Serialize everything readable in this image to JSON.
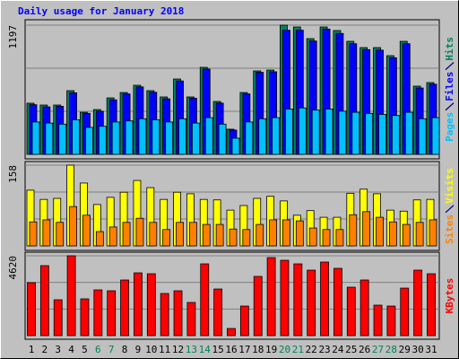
{
  "chart_data": {
    "type": "bar",
    "title": "Daily usage for January 2018",
    "categories": [
      "1",
      "2",
      "3",
      "4",
      "5",
      "6",
      "7",
      "8",
      "9",
      "10",
      "11",
      "12",
      "13",
      "14",
      "15",
      "16",
      "17",
      "18",
      "19",
      "20",
      "21",
      "22",
      "23",
      "24",
      "25",
      "26",
      "27",
      "28",
      "29",
      "30",
      "31"
    ],
    "category_colors": [
      "#000000",
      "#000000",
      "#000000",
      "#000000",
      "#000000",
      "#00805C",
      "#00805C",
      "#000000",
      "#000000",
      "#000000",
      "#000000",
      "#000000",
      "#00805C",
      "#00805C",
      "#000000",
      "#000000",
      "#000000",
      "#000000",
      "#000000",
      "#00805C",
      "#00805C",
      "#000000",
      "#000000",
      "#000000",
      "#000000",
      "#000000",
      "#00805C",
      "#00805C",
      "#000000",
      "#000000",
      "#000000"
    ],
    "panels": [
      {
        "ylim": [
          0,
          1197
        ],
        "yticks": [
          1197
        ],
        "series": [
          {
            "name": "Pages",
            "color": "#00C0FF",
            "values": [
              300,
              290,
              280,
              320,
              250,
              260,
              300,
              310,
              330,
              320,
              300,
              330,
              290,
              340,
              280,
              150,
              300,
              330,
              340,
              420,
              430,
              410,
              420,
              400,
              390,
              380,
              370,
              360,
              390,
              330,
              340
            ]
          },
          {
            "name": "Files",
            "color": "#0000FF",
            "values": [
              460,
              440,
              445,
              570,
              380,
              400,
              505,
              560,
              625,
              575,
              515,
              680,
              520,
              790,
              475,
              225,
              560,
              760,
              765,
              1150,
              1150,
              1050,
              1160,
              1120,
              1025,
              970,
              965,
              895,
              1025,
              615,
              650
            ]
          },
          {
            "name": "Hits",
            "color": "#00805C",
            "values": [
              474,
              457,
              457,
              590,
              390,
              415,
              523,
              573,
              640,
              590,
              532,
              698,
              532,
              806,
              490,
              233,
              573,
              773,
              781,
              1197,
              1180,
              1072,
              1180,
              1147,
              1047,
              989,
              989,
              914,
              1047,
              632,
              665
            ]
          }
        ]
      },
      {
        "ylim": [
          0,
          158
        ],
        "yticks": [
          158
        ],
        "series": [
          {
            "name": "Sites",
            "color": "#FF8000",
            "values": [
              47,
              51,
              46,
              77,
              60,
              28,
              37,
              46,
              54,
              46,
              32,
              46,
              46,
              42,
              42,
              33,
              32,
              42,
              51,
              51,
              49,
              35,
              32,
              32,
              61,
              67,
              56,
              47,
              42,
              46,
              51
            ]
          },
          {
            "name": "Visits",
            "color": "#FFFF00",
            "values": [
              109,
              91,
              93,
              158,
              123,
              81,
              95,
              105,
              128,
              114,
              91,
              105,
              102,
              91,
              90,
              70,
              79,
              93,
              97,
              88,
              60,
              69,
              56,
              56,
              103,
              111,
              102,
              70,
              68,
              90,
              91
            ]
          }
        ]
      },
      {
        "ylim": [
          0,
          4620
        ],
        "yticks": [
          4620
        ],
        "series": [
          {
            "name": "KBytes",
            "color": "#FF0000",
            "values": [
              3063,
              4048,
              2076,
              4620,
              2128,
              2647,
              2595,
              3218,
              3633,
              3581,
              2439,
              2595,
              1920,
              4152,
              2698,
              415,
              1712,
              3426,
              4516,
              4360,
              4152,
              3789,
              4256,
              3893,
              2802,
              3218,
              1764,
              1712,
              2750,
              3789,
              3581
            ]
          }
        ]
      }
    ]
  }
}
